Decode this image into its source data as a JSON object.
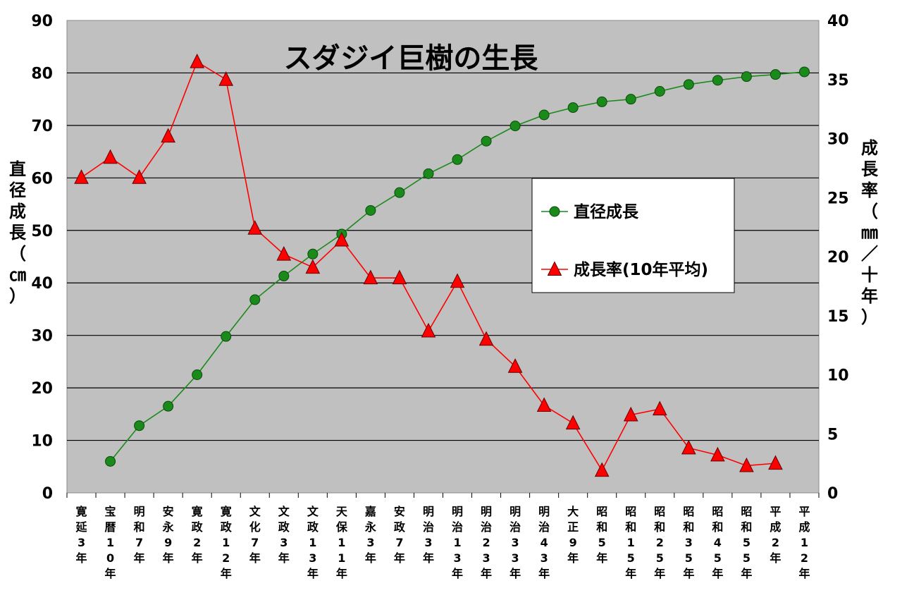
{
  "chart_data": {
    "type": "line",
    "title": "スダジイ巨樹の生長",
    "ylabel_left": "直径成長（㎝）",
    "ylabel_right": "成長率（㎜／十年）",
    "ylim_left": [
      0,
      90
    ],
    "ylim_right": [
      0,
      40
    ],
    "yticks_left": [
      "0",
      "10",
      "20",
      "30",
      "40",
      "50",
      "60",
      "70",
      "80",
      "90"
    ],
    "yticks_right": [
      "0",
      "5",
      "10",
      "15",
      "20",
      "25",
      "30",
      "35",
      "40"
    ],
    "grid": true,
    "legend_position": "right-center",
    "categories": [
      "寛延3年",
      "宝暦10年",
      "明和7年",
      "安永9年",
      "寛政2年",
      "寛政12年",
      "文化7年",
      "文政3年",
      "文政13年",
      "天保11年",
      "嘉永3年",
      "安政7年",
      "明治3年",
      "明治13年",
      "明治23年",
      "明治33年",
      "明治43年",
      "大正9年",
      "昭和5年",
      "昭和15年",
      "昭和25年",
      "昭和35年",
      "昭和45年",
      "昭和55年",
      "平成2年",
      "平成12年"
    ],
    "series": [
      {
        "name": "直径成長",
        "axis": "left",
        "color": "#1a8a1a",
        "marker": "circle",
        "values": [
          null,
          6,
          12.8,
          16.5,
          22.5,
          29.8,
          36.8,
          41.3,
          45.5,
          49.3,
          53.8,
          57.2,
          60.8,
          63.5,
          67,
          69.9,
          72,
          73.4,
          74.5,
          75,
          76.5,
          77.8,
          78.6,
          79.3,
          79.7,
          80.2
        ]
      },
      {
        "name": "成長率(10年平均)",
        "axis": "right",
        "color": "#ff0000",
        "marker": "triangle",
        "values": [
          26.7,
          28.4,
          26.7,
          30.2,
          36.5,
          35,
          22.4,
          20.2,
          19.1,
          21.4,
          18.2,
          18.2,
          13.7,
          17.9,
          13,
          10.7,
          7.4,
          5.9,
          1.9,
          6.6,
          7.1,
          3.8,
          3.2,
          2.3,
          2.5,
          null
        ]
      }
    ]
  }
}
